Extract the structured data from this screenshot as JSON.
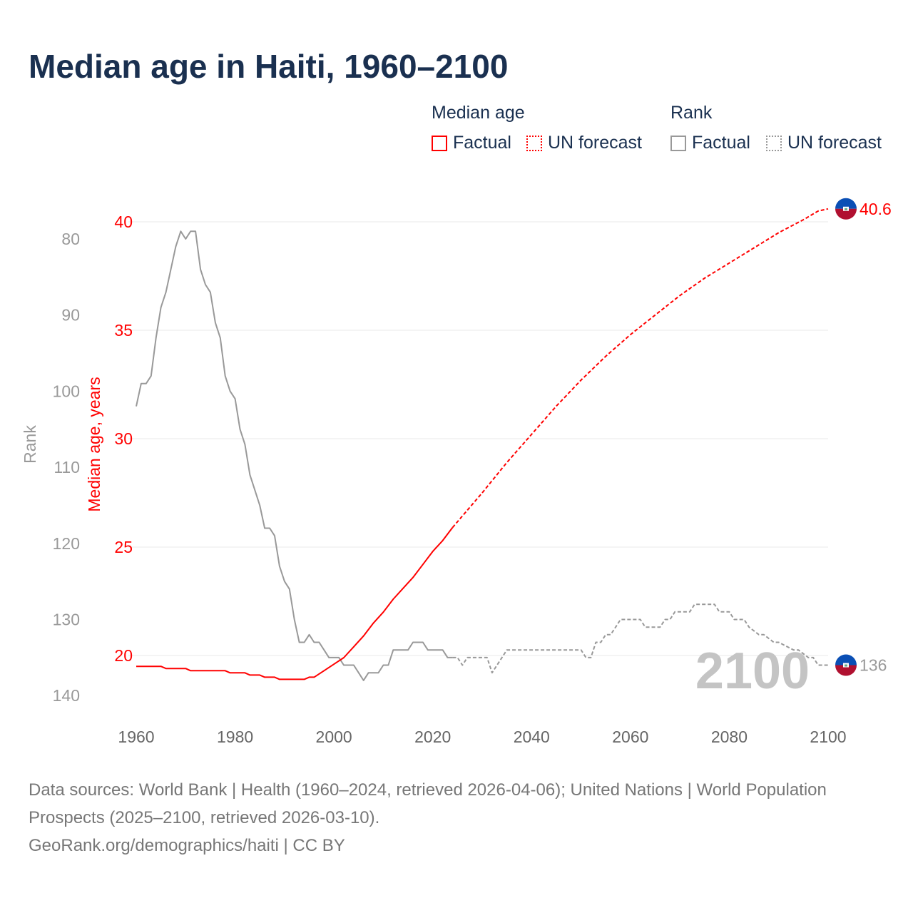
{
  "title": "Median age in Haiti, 1960–2100",
  "legend": {
    "median_heading": "Median age",
    "rank_heading": "Rank",
    "factual": "Factual",
    "forecast": "UN forecast"
  },
  "colors": {
    "median": "#ff0000",
    "rank": "#999999",
    "title": "#1a3050",
    "flag_blue": "#0a4fb5",
    "flag_red": "#b01030"
  },
  "footer": {
    "line1": "Data sources: World Bank | Health (1960–2024, retrieved 2026-04-06); United Nations | World Population Prospects (2025–2100, retrieved 2026-03-10).",
    "line2": "GeoRank.org/demographics/haiti | CC BY"
  },
  "chart_data": {
    "type": "line",
    "title": "Median age in Haiti, 1960–2100",
    "xlabel": "",
    "ylabel": "Median age, years",
    "y2label": "Rank",
    "xlim": [
      1960,
      2100
    ],
    "ylim": [
      17.9,
      40.6
    ],
    "y2lim": [
      76,
      143
    ],
    "x_ticks": [
      "1960",
      "1980",
      "2000",
      "2020",
      "2040",
      "2060",
      "2080",
      "2100"
    ],
    "y_ticks": [
      "20",
      "25",
      "30",
      "35",
      "40"
    ],
    "y2_ticks": [
      "80",
      "90",
      "100",
      "110",
      "120",
      "130",
      "140"
    ],
    "watermark_year": "2100",
    "end_labels": {
      "median": "40.6",
      "rank": "136"
    },
    "series": [
      {
        "name": "Median age – Factual",
        "years": [
          1960,
          1965,
          1966,
          1970,
          1971,
          1975,
          1978,
          1979,
          1982,
          1983,
          1985,
          1986,
          1988,
          1989,
          1994,
          1995,
          1996,
          1998,
          2000,
          2002,
          2004,
          2006,
          2008,
          2010,
          2012,
          2014,
          2016,
          2018,
          2020,
          2022,
          2024
        ],
        "values": [
          19.5,
          19.5,
          19.4,
          19.4,
          19.3,
          19.3,
          19.3,
          19.2,
          19.2,
          19.1,
          19.1,
          19.0,
          19.0,
          18.9,
          18.9,
          19.0,
          19.0,
          19.3,
          19.6,
          19.9,
          20.4,
          20.9,
          21.5,
          22.0,
          22.6,
          23.1,
          23.6,
          24.2,
          24.8,
          25.3,
          25.9
        ]
      },
      {
        "name": "Median age – UN forecast",
        "years": [
          2024,
          2030,
          2035,
          2040,
          2045,
          2050,
          2055,
          2060,
          2065,
          2070,
          2075,
          2080,
          2085,
          2090,
          2095,
          2098,
          2100
        ],
        "values": [
          25.9,
          27.5,
          28.9,
          30.2,
          31.5,
          32.7,
          33.8,
          34.8,
          35.7,
          36.6,
          37.4,
          38.1,
          38.8,
          39.5,
          40.1,
          40.5,
          40.6
        ]
      },
      {
        "name": "Rank – Factual",
        "years": [
          1960,
          1961,
          1962,
          1963,
          1964,
          1965,
          1966,
          1967,
          1968,
          1969,
          1970,
          1971,
          1972,
          1973,
          1974,
          1975,
          1976,
          1977,
          1978,
          1979,
          1980,
          1981,
          1982,
          1983,
          1984,
          1985,
          1986,
          1987,
          1988,
          1989,
          1990,
          1991,
          1992,
          1993,
          1994,
          1995,
          1996,
          1997,
          1998,
          1999,
          2000,
          2001,
          2002,
          2003,
          2004,
          2005,
          2006,
          2007,
          2008,
          2009,
          2010,
          2011,
          2012,
          2013,
          2014,
          2015,
          2016,
          2017,
          2018,
          2019,
          2020,
          2021,
          2022,
          2023,
          2024
        ],
        "values": [
          102,
          99,
          99,
          98,
          93,
          89,
          87,
          84,
          81,
          79,
          80,
          79,
          79,
          84,
          86,
          87,
          91,
          93,
          98,
          100,
          101,
          105,
          107,
          111,
          113,
          115,
          118,
          118,
          119,
          123,
          125,
          126,
          130,
          133,
          133,
          132,
          133,
          133,
          134,
          135,
          135,
          135,
          136,
          136,
          136,
          137,
          138,
          137,
          137,
          137,
          136,
          136,
          134,
          134,
          134,
          134,
          133,
          133,
          133,
          134,
          134,
          134,
          134,
          135,
          135
        ]
      },
      {
        "name": "Rank – UN forecast",
        "years": [
          2024,
          2025,
          2026,
          2027,
          2031,
          2032,
          2033,
          2034,
          2035,
          2050,
          2051,
          2052,
          2053,
          2054,
          2055,
          2056,
          2057,
          2058,
          2062,
          2063,
          2066,
          2067,
          2068,
          2069,
          2070,
          2072,
          2073,
          2077,
          2078,
          2080,
          2081,
          2083,
          2084,
          2086,
          2087,
          2089,
          2090,
          2093,
          2094,
          2096,
          2097,
          2098,
          2100
        ],
        "values": [
          135,
          135,
          136,
          135,
          135,
          137,
          136,
          135,
          134,
          134,
          135,
          135,
          133,
          133,
          132,
          132,
          131,
          130,
          130,
          131,
          131,
          130,
          130,
          129,
          129,
          129,
          128,
          128,
          129,
          129,
          130,
          130,
          131,
          132,
          132,
          133,
          133,
          134,
          134,
          135,
          135,
          136,
          136
        ]
      }
    ]
  }
}
